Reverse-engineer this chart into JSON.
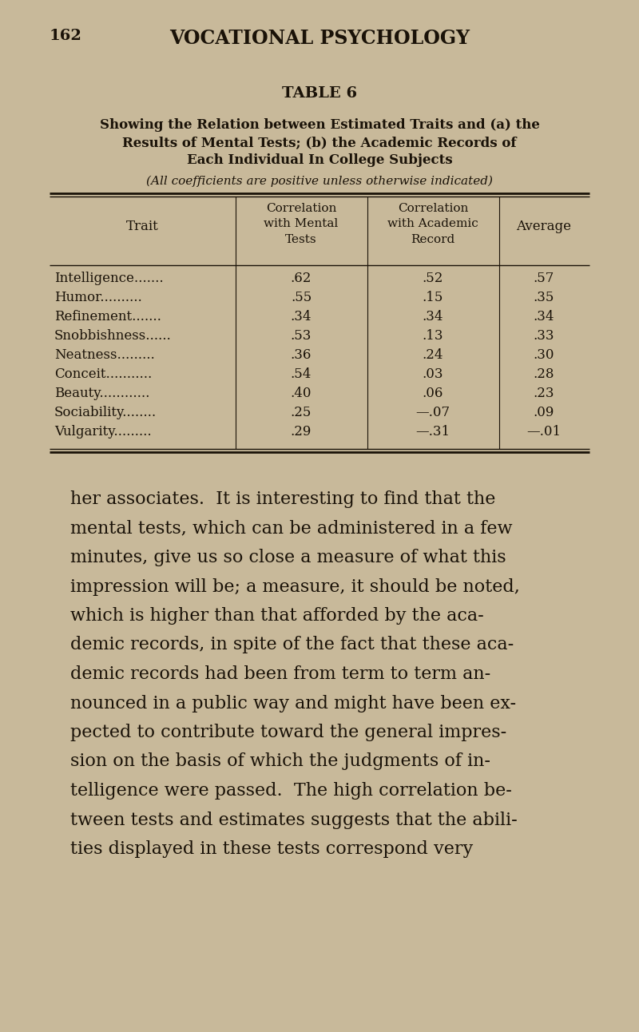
{
  "bg_color": "#c8b99a",
  "text_color": "#1a1208",
  "page_number": "162",
  "header_title": "VOCATIONAL PSYCHOLOGY",
  "table_title": "TABLE 6",
  "subtitle_line1": "Showing the Relation between Estimated Traits and (a) the",
  "subtitle_line2": "Results of Mental Tests; (b) the Academic Records of",
  "subtitle_line3": "Each Individual In College Subjects",
  "subtitle_note": "(All coefficients are positive unless otherwise indicated)",
  "col_header_trait": "Trait",
  "col_header_mental": "Correlation\nwith Mental\nTests",
  "col_header_academic": "Correlation\nwith Academic\nRecord",
  "col_header_avg": "Average",
  "traits": [
    "Intelligence.......",
    "Humor..........",
    "Refinement.......",
    "Snobbishness......",
    "Neatness.........",
    "Conceit...........",
    "Beauty............",
    "Sociability........",
    "Vulgarity........."
  ],
  "mental_corr": [
    ".62",
    ".55",
    ".34",
    ".53",
    ".36",
    ".54",
    ".40",
    ".25",
    ".29"
  ],
  "academic_corr": [
    ".52",
    ".15",
    ".34",
    ".13",
    ".24",
    ".03",
    ".06",
    "—.07",
    "—.31"
  ],
  "average": [
    ".57",
    ".35",
    ".34",
    ".33",
    ".30",
    ".28",
    ".23",
    ".09",
    "—.01"
  ],
  "body_text": [
    "her associates.  It is interesting to find that the",
    "mental tests, which can be administered in a few",
    "minutes, give us so close a measure of what this",
    "impression will be; a measure, it should be noted,",
    "which is higher than that afforded by the aca-",
    "demic records, in spite of the fact that these aca-",
    "demic records had been from term to term an-",
    "nounced in a public way and might have been ex-",
    "pected to contribute toward the general impres-",
    "sion on the basis of which the judgments of in-",
    "telligence were passed.  The high correlation be-",
    "tween tests and estimates suggests that the abili-",
    "ties displayed in these tests correspond very"
  ],
  "figwidth": 8.0,
  "figheight": 12.92,
  "dpi": 100
}
